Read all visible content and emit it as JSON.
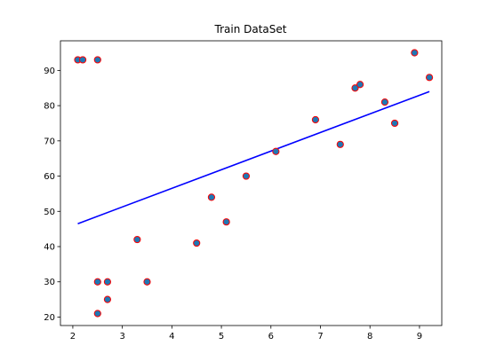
{
  "chart_data": {
    "type": "scatter",
    "title": "Train DataSet",
    "xlabel": "",
    "ylabel": "",
    "xlim": [
      1.75,
      9.45
    ],
    "ylim": [
      17.6,
      98.4
    ],
    "xticks": [
      2,
      3,
      4,
      5,
      6,
      7,
      8,
      9
    ],
    "yticks": [
      20,
      30,
      40,
      50,
      60,
      70,
      80,
      90
    ],
    "grid": false,
    "series": [
      {
        "type": "scatter",
        "marker_face": "#1f77b4",
        "marker_edge": "#ff0000",
        "points": [
          {
            "x": 2.1,
            "y": 93
          },
          {
            "x": 2.2,
            "y": 93
          },
          {
            "x": 2.5,
            "y": 93
          },
          {
            "x": 2.5,
            "y": 30
          },
          {
            "x": 2.5,
            "y": 21
          },
          {
            "x": 2.7,
            "y": 30
          },
          {
            "x": 2.7,
            "y": 25
          },
          {
            "x": 3.3,
            "y": 42
          },
          {
            "x": 3.5,
            "y": 30
          },
          {
            "x": 4.5,
            "y": 41
          },
          {
            "x": 4.8,
            "y": 54
          },
          {
            "x": 5.1,
            "y": 47
          },
          {
            "x": 5.5,
            "y": 60
          },
          {
            "x": 6.1,
            "y": 67
          },
          {
            "x": 6.9,
            "y": 76
          },
          {
            "x": 7.4,
            "y": 69
          },
          {
            "x": 7.7,
            "y": 85
          },
          {
            "x": 7.8,
            "y": 86
          },
          {
            "x": 8.3,
            "y": 81
          },
          {
            "x": 8.5,
            "y": 75
          },
          {
            "x": 8.9,
            "y": 95
          },
          {
            "x": 9.2,
            "y": 88
          }
        ]
      },
      {
        "type": "line",
        "color": "#0000ff",
        "points": [
          {
            "x": 2.1,
            "y": 46.5
          },
          {
            "x": 9.2,
            "y": 84
          }
        ]
      }
    ]
  }
}
